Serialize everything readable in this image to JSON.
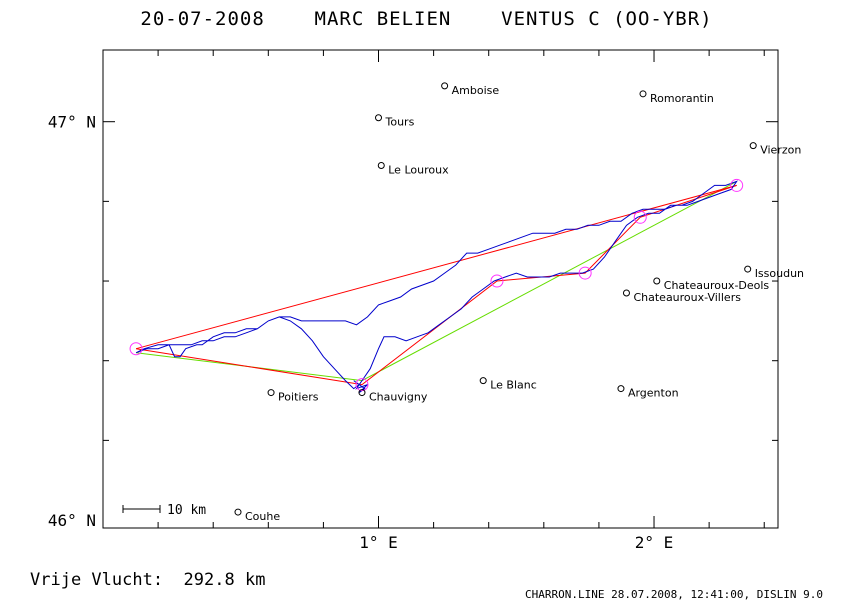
{
  "header": {
    "title_parts": [
      "20-07-2008",
      "MARC BELIEN",
      "VENTUS C (OO-YBR)"
    ]
  },
  "map": {
    "lon_range": [
      0.0,
      2.45
    ],
    "lat_range": [
      45.98,
      47.18
    ],
    "x_ticks": [
      {
        "value": 1,
        "label": "1° E"
      },
      {
        "value": 2,
        "label": "2° E"
      }
    ],
    "y_ticks": [
      {
        "value": 47,
        "label": "47° N"
      },
      {
        "value": 46,
        "label": "46° N"
      }
    ],
    "scale_label": "10 km",
    "colors": {
      "frame": "#000000",
      "track": "#0000cc",
      "declared_line": "#ff0000",
      "legs": "#ff0000",
      "alt_line": "#66dd00",
      "turnpoint": "#ff33ff"
    },
    "towns": [
      {
        "name": "Amboise",
        "lon": 1.24,
        "lat": 47.09
      },
      {
        "name": "Romorantin",
        "lon": 1.96,
        "lat": 47.07
      },
      {
        "name": "Tours",
        "lon": 1.0,
        "lat": 47.01
      },
      {
        "name": "Vierzon",
        "lon": 2.36,
        "lat": 46.94
      },
      {
        "name": "Le Louroux",
        "lon": 1.01,
        "lat": 46.89
      },
      {
        "name": "Issoudun",
        "lon": 2.34,
        "lat": 46.63
      },
      {
        "name": "Chateauroux-Deols",
        "lon": 2.01,
        "lat": 46.6
      },
      {
        "name": "Chateauroux-Villers",
        "lon": 1.9,
        "lat": 46.57
      },
      {
        "name": "Le Blanc",
        "lon": 1.38,
        "lat": 46.35
      },
      {
        "name": "Poitiers",
        "lon": 0.61,
        "lat": 46.32
      },
      {
        "name": "Argenton",
        "lon": 1.88,
        "lat": 46.33
      },
      {
        "name": "Chauvigny",
        "lon": 0.94,
        "lat": 46.32
      },
      {
        "name": "Couhe",
        "lon": 0.49,
        "lat": 46.02
      }
    ],
    "declared_route": [
      [
        0.12,
        46.43
      ],
      [
        2.3,
        46.84
      ]
    ],
    "alt_route": [
      [
        0.12,
        46.42
      ],
      [
        0.94,
        46.35
      ],
      [
        2.3,
        46.85
      ]
    ],
    "turnpoints": [
      [
        0.12,
        46.43
      ],
      [
        0.94,
        46.34
      ],
      [
        1.43,
        46.6
      ],
      [
        1.75,
        46.62
      ],
      [
        1.95,
        46.76
      ],
      [
        2.3,
        46.84
      ]
    ],
    "track": [
      [
        0.12,
        46.42
      ],
      [
        0.15,
        46.43
      ],
      [
        0.2,
        46.44
      ],
      [
        0.24,
        46.44
      ],
      [
        0.26,
        46.41
      ],
      [
        0.28,
        46.41
      ],
      [
        0.3,
        46.43
      ],
      [
        0.34,
        46.44
      ],
      [
        0.36,
        46.44
      ],
      [
        0.4,
        46.46
      ],
      [
        0.44,
        46.47
      ],
      [
        0.48,
        46.47
      ],
      [
        0.52,
        46.48
      ],
      [
        0.56,
        46.48
      ],
      [
        0.6,
        46.5
      ],
      [
        0.64,
        46.51
      ],
      [
        0.68,
        46.5
      ],
      [
        0.72,
        46.48
      ],
      [
        0.76,
        46.45
      ],
      [
        0.8,
        46.41
      ],
      [
        0.84,
        46.38
      ],
      [
        0.88,
        46.35
      ],
      [
        0.91,
        46.33
      ],
      [
        0.93,
        46.34
      ],
      [
        0.91,
        46.35
      ],
      [
        0.95,
        46.33
      ],
      [
        0.93,
        46.32
      ],
      [
        0.96,
        46.34
      ],
      [
        0.92,
        46.33
      ],
      [
        0.94,
        46.35
      ],
      [
        0.97,
        46.38
      ],
      [
        1.0,
        46.43
      ],
      [
        1.02,
        46.46
      ],
      [
        1.06,
        46.46
      ],
      [
        1.1,
        46.45
      ],
      [
        1.14,
        46.46
      ],
      [
        1.18,
        46.47
      ],
      [
        1.22,
        46.49
      ],
      [
        1.26,
        46.51
      ],
      [
        1.3,
        46.53
      ],
      [
        1.34,
        46.56
      ],
      [
        1.38,
        46.58
      ],
      [
        1.42,
        46.6
      ],
      [
        1.46,
        46.61
      ],
      [
        1.5,
        46.62
      ],
      [
        1.54,
        46.61
      ],
      [
        1.58,
        46.61
      ],
      [
        1.62,
        46.61
      ],
      [
        1.66,
        46.62
      ],
      [
        1.7,
        46.62
      ],
      [
        1.74,
        46.62
      ],
      [
        1.78,
        46.63
      ],
      [
        1.82,
        46.66
      ],
      [
        1.86,
        46.7
      ],
      [
        1.9,
        46.74
      ],
      [
        1.94,
        46.76
      ],
      [
        1.98,
        46.77
      ],
      [
        2.02,
        46.77
      ],
      [
        2.06,
        46.79
      ],
      [
        2.1,
        46.79
      ],
      [
        2.14,
        46.8
      ],
      [
        2.18,
        46.82
      ],
      [
        2.22,
        46.84
      ],
      [
        2.26,
        46.84
      ],
      [
        2.3,
        46.85
      ],
      [
        2.28,
        46.83
      ],
      [
        2.24,
        46.82
      ],
      [
        2.2,
        46.81
      ],
      [
        2.16,
        46.8
      ],
      [
        2.12,
        46.79
      ],
      [
        2.08,
        46.79
      ],
      [
        2.04,
        46.78
      ],
      [
        2.0,
        46.78
      ],
      [
        1.96,
        46.78
      ],
      [
        1.92,
        46.77
      ],
      [
        1.88,
        46.75
      ],
      [
        1.84,
        46.75
      ],
      [
        1.8,
        46.74
      ],
      [
        1.76,
        46.74
      ],
      [
        1.72,
        46.73
      ],
      [
        1.68,
        46.73
      ],
      [
        1.64,
        46.72
      ],
      [
        1.6,
        46.72
      ],
      [
        1.56,
        46.72
      ],
      [
        1.52,
        46.71
      ],
      [
        1.48,
        46.7
      ],
      [
        1.44,
        46.69
      ],
      [
        1.4,
        46.68
      ],
      [
        1.36,
        46.67
      ],
      [
        1.32,
        46.67
      ],
      [
        1.28,
        46.64
      ],
      [
        1.24,
        46.62
      ],
      [
        1.2,
        46.6
      ],
      [
        1.16,
        46.59
      ],
      [
        1.12,
        46.58
      ],
      [
        1.08,
        46.56
      ],
      [
        1.04,
        46.55
      ],
      [
        1.0,
        46.54
      ],
      [
        0.96,
        46.51
      ],
      [
        0.92,
        46.49
      ],
      [
        0.88,
        46.5
      ],
      [
        0.84,
        46.5
      ],
      [
        0.8,
        46.5
      ],
      [
        0.76,
        46.5
      ],
      [
        0.72,
        46.5
      ],
      [
        0.68,
        46.51
      ],
      [
        0.64,
        46.51
      ],
      [
        0.6,
        46.5
      ],
      [
        0.56,
        46.48
      ],
      [
        0.52,
        46.47
      ],
      [
        0.48,
        46.46
      ],
      [
        0.44,
        46.46
      ],
      [
        0.4,
        46.45
      ],
      [
        0.36,
        46.45
      ],
      [
        0.32,
        46.44
      ],
      [
        0.28,
        46.44
      ],
      [
        0.24,
        46.44
      ],
      [
        0.2,
        46.43
      ],
      [
        0.16,
        46.43
      ],
      [
        0.12,
        46.42
      ]
    ]
  },
  "footer": {
    "distance_label": "Vrije Vlucht:",
    "distance_value": "292.8 km",
    "credits": "CHARRON.LINE 28.07.2008, 12:41:00, DISLIN 9.0"
  }
}
